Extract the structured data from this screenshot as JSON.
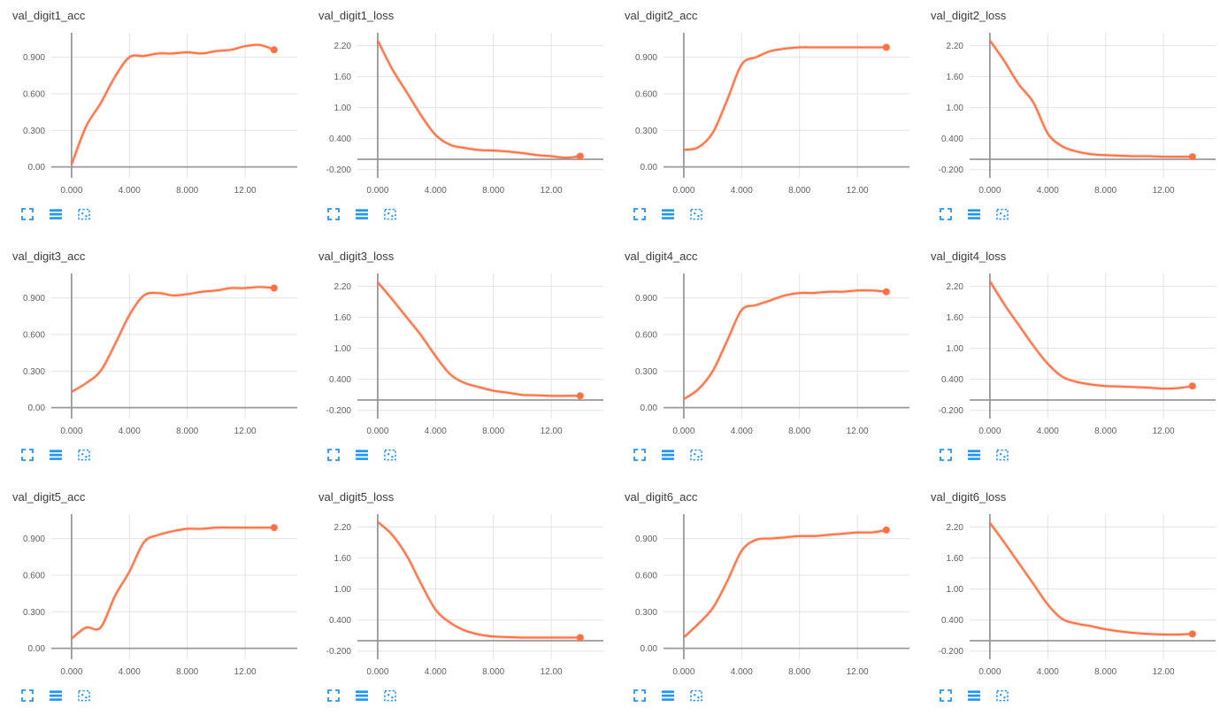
{
  "style": {
    "line_color": "#ff7043",
    "line_halo_opacity": 0.25,
    "icon_color": "#2196f3",
    "grid_color": "#e3e3e3",
    "axis_color": "#999999",
    "title_color": "#3c3c3c",
    "tick_color": "#616161"
  },
  "controls": {
    "buttons": [
      {
        "name": "expand-chart",
        "icon": "expand-icon"
      },
      {
        "name": "data-table",
        "icon": "horizontal-lines-icon"
      },
      {
        "name": "fit-domain",
        "icon": "dashed-box-dots-icon"
      }
    ]
  },
  "chart_data": [
    {
      "type": "line",
      "title": "val_digit1_acc",
      "x": [
        0,
        1,
        2,
        3,
        4,
        5,
        6,
        7,
        8,
        9,
        10,
        11,
        12,
        13,
        14
      ],
      "y": [
        0.02,
        0.33,
        0.52,
        0.74,
        0.9,
        0.91,
        0.93,
        0.93,
        0.94,
        0.93,
        0.95,
        0.96,
        0.99,
        1.0,
        0.96
      ],
      "xlim": [
        -1.4,
        15.6
      ],
      "ylim": [
        -0.09,
        1.1
      ],
      "x_tick_values": [
        0,
        4,
        8,
        12
      ],
      "x_tick_labels": [
        "0.000",
        "4.000",
        "8.000",
        "12.00"
      ],
      "y_tick_values": [
        0,
        0.3,
        0.6,
        0.9
      ],
      "y_tick_labels": [
        "0.00",
        "0.300",
        "0.600",
        "0.900"
      ],
      "end_marker": true
    },
    {
      "type": "line",
      "title": "val_digit1_loss",
      "x": [
        0,
        1,
        2,
        3,
        4,
        5,
        6,
        7,
        8,
        9,
        10,
        11,
        12,
        13,
        14
      ],
      "y": [
        2.3,
        1.75,
        1.3,
        0.85,
        0.47,
        0.28,
        0.22,
        0.18,
        0.17,
        0.15,
        0.12,
        0.08,
        0.06,
        0.03,
        0.06
      ],
      "xlim": [
        -1.4,
        15.6
      ],
      "ylim": [
        -0.36,
        2.45
      ],
      "x_tick_values": [
        0,
        4,
        8,
        12
      ],
      "x_tick_labels": [
        "0.000",
        "4.000",
        "8.000",
        "12.00"
      ],
      "y_tick_values": [
        -0.2,
        0.4,
        1.0,
        1.6,
        2.2
      ],
      "y_tick_labels": [
        "-0.200",
        "0.400",
        "1.00",
        "1.60",
        "2.20"
      ],
      "end_marker": true
    },
    {
      "type": "line",
      "title": "val_digit2_acc",
      "x": [
        0,
        1,
        2,
        3,
        4,
        5,
        6,
        7,
        8,
        9,
        10,
        11,
        12,
        13,
        14
      ],
      "y": [
        0.14,
        0.16,
        0.28,
        0.55,
        0.84,
        0.9,
        0.95,
        0.97,
        0.98,
        0.98,
        0.98,
        0.98,
        0.98,
        0.98,
        0.98
      ],
      "xlim": [
        -1.4,
        15.6
      ],
      "ylim": [
        -0.09,
        1.1
      ],
      "x_tick_values": [
        0,
        4,
        8,
        12
      ],
      "x_tick_labels": [
        "0.000",
        "4.000",
        "8.000",
        "12.00"
      ],
      "y_tick_values": [
        0,
        0.3,
        0.6,
        0.9
      ],
      "y_tick_labels": [
        "0.00",
        "0.300",
        "0.600",
        "0.900"
      ],
      "end_marker": true
    },
    {
      "type": "line",
      "title": "val_digit2_loss",
      "x": [
        0,
        1,
        2,
        3,
        4,
        5,
        6,
        7,
        8,
        9,
        10,
        11,
        12,
        13,
        14
      ],
      "y": [
        2.3,
        1.9,
        1.45,
        1.1,
        0.5,
        0.25,
        0.15,
        0.1,
        0.08,
        0.07,
        0.06,
        0.06,
        0.05,
        0.05,
        0.05
      ],
      "xlim": [
        -1.4,
        15.6
      ],
      "ylim": [
        -0.36,
        2.45
      ],
      "x_tick_values": [
        0,
        4,
        8,
        12
      ],
      "x_tick_labels": [
        "0.000",
        "4.000",
        "8.000",
        "12.00"
      ],
      "y_tick_values": [
        -0.2,
        0.4,
        1.0,
        1.6,
        2.2
      ],
      "y_tick_labels": [
        "-0.200",
        "0.400",
        "1.00",
        "1.60",
        "2.20"
      ],
      "end_marker": true
    },
    {
      "type": "line",
      "title": "val_digit3_acc",
      "x": [
        0,
        1,
        2,
        3,
        4,
        5,
        6,
        7,
        8,
        9,
        10,
        11,
        12,
        13,
        14
      ],
      "y": [
        0.13,
        0.2,
        0.3,
        0.52,
        0.76,
        0.92,
        0.94,
        0.92,
        0.93,
        0.95,
        0.96,
        0.98,
        0.98,
        0.99,
        0.98
      ],
      "xlim": [
        -1.4,
        15.6
      ],
      "ylim": [
        -0.09,
        1.1
      ],
      "x_tick_values": [
        0,
        4,
        8,
        12
      ],
      "x_tick_labels": [
        "0.000",
        "4.000",
        "8.000",
        "12.00"
      ],
      "y_tick_values": [
        0,
        0.3,
        0.6,
        0.9
      ],
      "y_tick_labels": [
        "0.00",
        "0.300",
        "0.600",
        "0.900"
      ],
      "end_marker": true
    },
    {
      "type": "line",
      "title": "val_digit3_loss",
      "x": [
        0,
        1,
        2,
        3,
        4,
        5,
        6,
        7,
        8,
        9,
        10,
        11,
        12,
        13,
        14
      ],
      "y": [
        2.28,
        1.95,
        1.6,
        1.25,
        0.85,
        0.5,
        0.33,
        0.25,
        0.18,
        0.14,
        0.1,
        0.09,
        0.08,
        0.08,
        0.08
      ],
      "xlim": [
        -1.4,
        15.6
      ],
      "ylim": [
        -0.36,
        2.45
      ],
      "x_tick_values": [
        0,
        4,
        8,
        12
      ],
      "x_tick_labels": [
        "0.000",
        "4.000",
        "8.000",
        "12.00"
      ],
      "y_tick_values": [
        -0.2,
        0.4,
        1.0,
        1.6,
        2.2
      ],
      "y_tick_labels": [
        "-0.200",
        "0.400",
        "1.00",
        "1.60",
        "2.20"
      ],
      "end_marker": true
    },
    {
      "type": "line",
      "title": "val_digit4_acc",
      "x": [
        0,
        1,
        2,
        3,
        4,
        5,
        6,
        7,
        8,
        9,
        10,
        11,
        12,
        13,
        14
      ],
      "y": [
        0.07,
        0.15,
        0.3,
        0.55,
        0.8,
        0.84,
        0.88,
        0.92,
        0.94,
        0.94,
        0.95,
        0.95,
        0.96,
        0.96,
        0.95
      ],
      "xlim": [
        -1.4,
        15.6
      ],
      "ylim": [
        -0.09,
        1.1
      ],
      "x_tick_values": [
        0,
        4,
        8,
        12
      ],
      "x_tick_labels": [
        "0.000",
        "4.000",
        "8.000",
        "12.00"
      ],
      "y_tick_values": [
        0,
        0.3,
        0.6,
        0.9
      ],
      "y_tick_labels": [
        "0.00",
        "0.300",
        "0.600",
        "0.900"
      ],
      "end_marker": true
    },
    {
      "type": "line",
      "title": "val_digit4_loss",
      "x": [
        0,
        1,
        2,
        3,
        4,
        5,
        6,
        7,
        8,
        9,
        10,
        11,
        12,
        13,
        14
      ],
      "y": [
        2.3,
        1.85,
        1.45,
        1.05,
        0.7,
        0.45,
        0.35,
        0.3,
        0.27,
        0.26,
        0.25,
        0.24,
        0.22,
        0.23,
        0.27
      ],
      "xlim": [
        -1.4,
        15.6
      ],
      "ylim": [
        -0.36,
        2.45
      ],
      "x_tick_values": [
        0,
        4,
        8,
        12
      ],
      "x_tick_labels": [
        "0.000",
        "4.000",
        "8.000",
        "12.00"
      ],
      "y_tick_values": [
        -0.2,
        0.4,
        1.0,
        1.6,
        2.2
      ],
      "y_tick_labels": [
        "-0.200",
        "0.400",
        "1.00",
        "1.60",
        "2.20"
      ],
      "end_marker": true
    },
    {
      "type": "line",
      "title": "val_digit5_acc",
      "x": [
        0,
        1,
        2,
        3,
        4,
        5,
        6,
        7,
        8,
        9,
        10,
        11,
        12,
        13,
        14
      ],
      "y": [
        0.08,
        0.17,
        0.17,
        0.43,
        0.63,
        0.87,
        0.93,
        0.96,
        0.98,
        0.98,
        0.99,
        0.99,
        0.99,
        0.99,
        0.99
      ],
      "xlim": [
        -1.4,
        15.6
      ],
      "ylim": [
        -0.09,
        1.1
      ],
      "x_tick_values": [
        0,
        4,
        8,
        12
      ],
      "x_tick_labels": [
        "0.000",
        "4.000",
        "8.000",
        "12.00"
      ],
      "y_tick_values": [
        0,
        0.3,
        0.6,
        0.9
      ],
      "y_tick_labels": [
        "0.00",
        "0.300",
        "0.600",
        "0.900"
      ],
      "end_marker": true
    },
    {
      "type": "line",
      "title": "val_digit5_loss",
      "x": [
        0,
        1,
        2,
        3,
        4,
        5,
        6,
        7,
        8,
        9,
        10,
        11,
        12,
        13,
        14
      ],
      "y": [
        2.3,
        2.05,
        1.65,
        1.1,
        0.6,
        0.35,
        0.2,
        0.12,
        0.08,
        0.07,
        0.06,
        0.06,
        0.06,
        0.06,
        0.06
      ],
      "xlim": [
        -1.4,
        15.6
      ],
      "ylim": [
        -0.36,
        2.45
      ],
      "x_tick_values": [
        0,
        4,
        8,
        12
      ],
      "x_tick_labels": [
        "0.000",
        "4.000",
        "8.000",
        "12.00"
      ],
      "y_tick_values": [
        -0.2,
        0.4,
        1.0,
        1.6,
        2.2
      ],
      "y_tick_labels": [
        "-0.200",
        "0.400",
        "1.00",
        "1.60",
        "2.20"
      ],
      "end_marker": true
    },
    {
      "type": "line",
      "title": "val_digit6_acc",
      "x": [
        0,
        1,
        2,
        3,
        4,
        5,
        6,
        7,
        8,
        9,
        10,
        11,
        12,
        13,
        14
      ],
      "y": [
        0.09,
        0.2,
        0.33,
        0.55,
        0.8,
        0.89,
        0.9,
        0.91,
        0.92,
        0.92,
        0.93,
        0.94,
        0.95,
        0.95,
        0.97
      ],
      "xlim": [
        -1.4,
        15.6
      ],
      "ylim": [
        -0.09,
        1.1
      ],
      "x_tick_values": [
        0,
        4,
        8,
        12
      ],
      "x_tick_labels": [
        "0.000",
        "4.000",
        "8.000",
        "12.00"
      ],
      "y_tick_values": [
        0,
        0.3,
        0.6,
        0.9
      ],
      "y_tick_labels": [
        "0.00",
        "0.300",
        "0.600",
        "0.900"
      ],
      "end_marker": true
    },
    {
      "type": "line",
      "title": "val_digit6_loss",
      "x": [
        0,
        1,
        2,
        3,
        4,
        5,
        6,
        7,
        8,
        9,
        10,
        11,
        12,
        13,
        14
      ],
      "y": [
        2.28,
        1.9,
        1.5,
        1.1,
        0.7,
        0.42,
        0.33,
        0.28,
        0.22,
        0.18,
        0.15,
        0.13,
        0.12,
        0.12,
        0.13
      ],
      "xlim": [
        -1.4,
        15.6
      ],
      "ylim": [
        -0.36,
        2.45
      ],
      "x_tick_values": [
        0,
        4,
        8,
        12
      ],
      "x_tick_labels": [
        "0.000",
        "4.000",
        "8.000",
        "12.00"
      ],
      "y_tick_values": [
        -0.2,
        0.4,
        1.0,
        1.6,
        2.2
      ],
      "y_tick_labels": [
        "-0.200",
        "0.400",
        "1.00",
        "1.60",
        "2.20"
      ],
      "end_marker": true
    }
  ]
}
